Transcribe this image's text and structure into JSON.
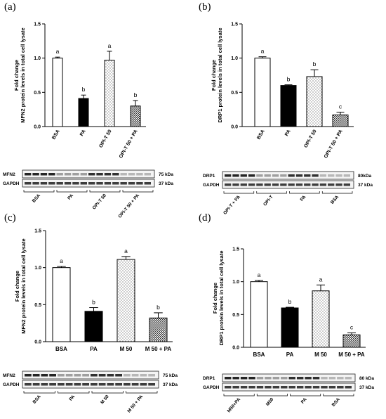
{
  "panels": [
    {
      "label": "(a)",
      "chart_data": {
        "type": "bar",
        "ylabel": "Fold change\nMFN2 protein levels in total cell lysate",
        "xlabel": "",
        "ylim": [
          0,
          1.5
        ],
        "yticks": [
          "0.0",
          "0.5",
          "1.0",
          "1.5"
        ],
        "categories": [
          "BSA",
          "PA",
          "OPI-T 50",
          "OPI-T 50 + PA"
        ],
        "values": [
          1.0,
          0.41,
          0.97,
          0.3
        ],
        "errors": [
          0.015,
          0.05,
          0.13,
          0.08
        ],
        "significance": [
          "a",
          "b",
          "a",
          "b"
        ],
        "patterns": [
          "white",
          "black",
          "dots",
          "grid"
        ]
      },
      "blot": {
        "bands": [
          "MFN2",
          "GAPDH"
        ],
        "sizes": [
          "75 kDa",
          "37 kDa"
        ],
        "lanes": [
          "BSA",
          "PA",
          "OPI-T 50",
          "OPI-T 50 + PA"
        ]
      }
    },
    {
      "label": "(b)",
      "chart_data": {
        "type": "bar",
        "ylabel": "Fold change\nDRP1 protein levels in total cell lysate",
        "xlabel": "",
        "ylim": [
          0,
          1.5
        ],
        "yticks": [
          "0.0",
          "0.5",
          "1.0",
          "1.5"
        ],
        "categories": [
          "BSA",
          "PA",
          "OPI-T 50",
          "OPI-T 50 + PA"
        ],
        "values": [
          1.0,
          0.6,
          0.73,
          0.17
        ],
        "errors": [
          0.02,
          0.01,
          0.1,
          0.04
        ],
        "significance": [
          "a",
          "b",
          "b",
          "c"
        ],
        "patterns": [
          "white",
          "black",
          "dots",
          "grid"
        ]
      },
      "blot": {
        "bands": [
          "DRP1",
          "GAPDH"
        ],
        "sizes": [
          "80kDa",
          "37 kDa"
        ],
        "lanes": [
          "OPI-T + PA",
          "OPI-T",
          "PA",
          "BSA"
        ]
      }
    },
    {
      "label": "(c)",
      "chart_data": {
        "type": "bar",
        "ylabel": "Fold change\nMFN2 protein levels in total cell lysate",
        "xlabel": "",
        "ylim": [
          0,
          1.5
        ],
        "yticks": [
          "0.0",
          "0.5",
          "1.0",
          "1.5"
        ],
        "categories": [
          "BSA",
          "PA",
          "M 50",
          "M 50 + PA"
        ],
        "values": [
          1.0,
          0.41,
          1.11,
          0.32
        ],
        "errors": [
          0.015,
          0.05,
          0.04,
          0.07
        ],
        "significance": [
          "a",
          "b",
          "a",
          "b"
        ],
        "patterns": [
          "white",
          "black",
          "dots",
          "grid"
        ]
      },
      "blot": {
        "bands": [
          "MFN2",
          "GAPDH"
        ],
        "sizes": [
          "75 kDa",
          "37 kDa"
        ],
        "lanes": [
          "BSA",
          "PA",
          "M 50",
          "M 50 + PA"
        ]
      }
    },
    {
      "label": "(d)",
      "chart_data": {
        "type": "bar",
        "ylabel": "Fold change\nDRP1 protein levels in total cell lysate",
        "xlabel": "",
        "ylim": [
          0,
          1.5
        ],
        "yticks": [
          "0.0",
          "0.5",
          "1.0",
          "1.5"
        ],
        "categories": [
          "BSA",
          "PA",
          "M 50",
          "M 50 + PA"
        ],
        "values": [
          1.0,
          0.6,
          0.86,
          0.19
        ],
        "errors": [
          0.02,
          0.01,
          0.09,
          0.03
        ],
        "significance": [
          "a",
          "b",
          "a",
          "c"
        ],
        "patterns": [
          "white",
          "black",
          "dots",
          "grid"
        ]
      },
      "blot": {
        "bands": [
          "DRP1",
          "GAPDH"
        ],
        "sizes": [
          "80 kDa",
          "37 kDa"
        ],
        "lanes": [
          "M50+PA",
          "M50",
          "PA",
          "BSA"
        ]
      }
    }
  ],
  "chart_data": [
    {
      "type": "bar",
      "categories": [
        "BSA",
        "PA",
        "OPI-T 50",
        "OPI-T 50 + PA"
      ],
      "values": [
        1.0,
        0.41,
        0.97,
        0.3
      ],
      "ylim": [
        0,
        1.5
      ]
    },
    {
      "type": "bar",
      "categories": [
        "BSA",
        "PA",
        "OPI-T 50",
        "OPI-T 50 + PA"
      ],
      "values": [
        1.0,
        0.6,
        0.73,
        0.17
      ],
      "ylim": [
        0,
        1.5
      ]
    },
    {
      "type": "bar",
      "categories": [
        "BSA",
        "PA",
        "M 50",
        "M 50 + PA"
      ],
      "values": [
        1.0,
        0.41,
        1.11,
        0.32
      ],
      "ylim": [
        0,
        1.5
      ]
    },
    {
      "type": "bar",
      "categories": [
        "BSA",
        "PA",
        "M 50",
        "M 50 + PA"
      ],
      "values": [
        1.0,
        0.6,
        0.86,
        0.19
      ],
      "ylim": [
        0,
        1.5
      ]
    }
  ]
}
